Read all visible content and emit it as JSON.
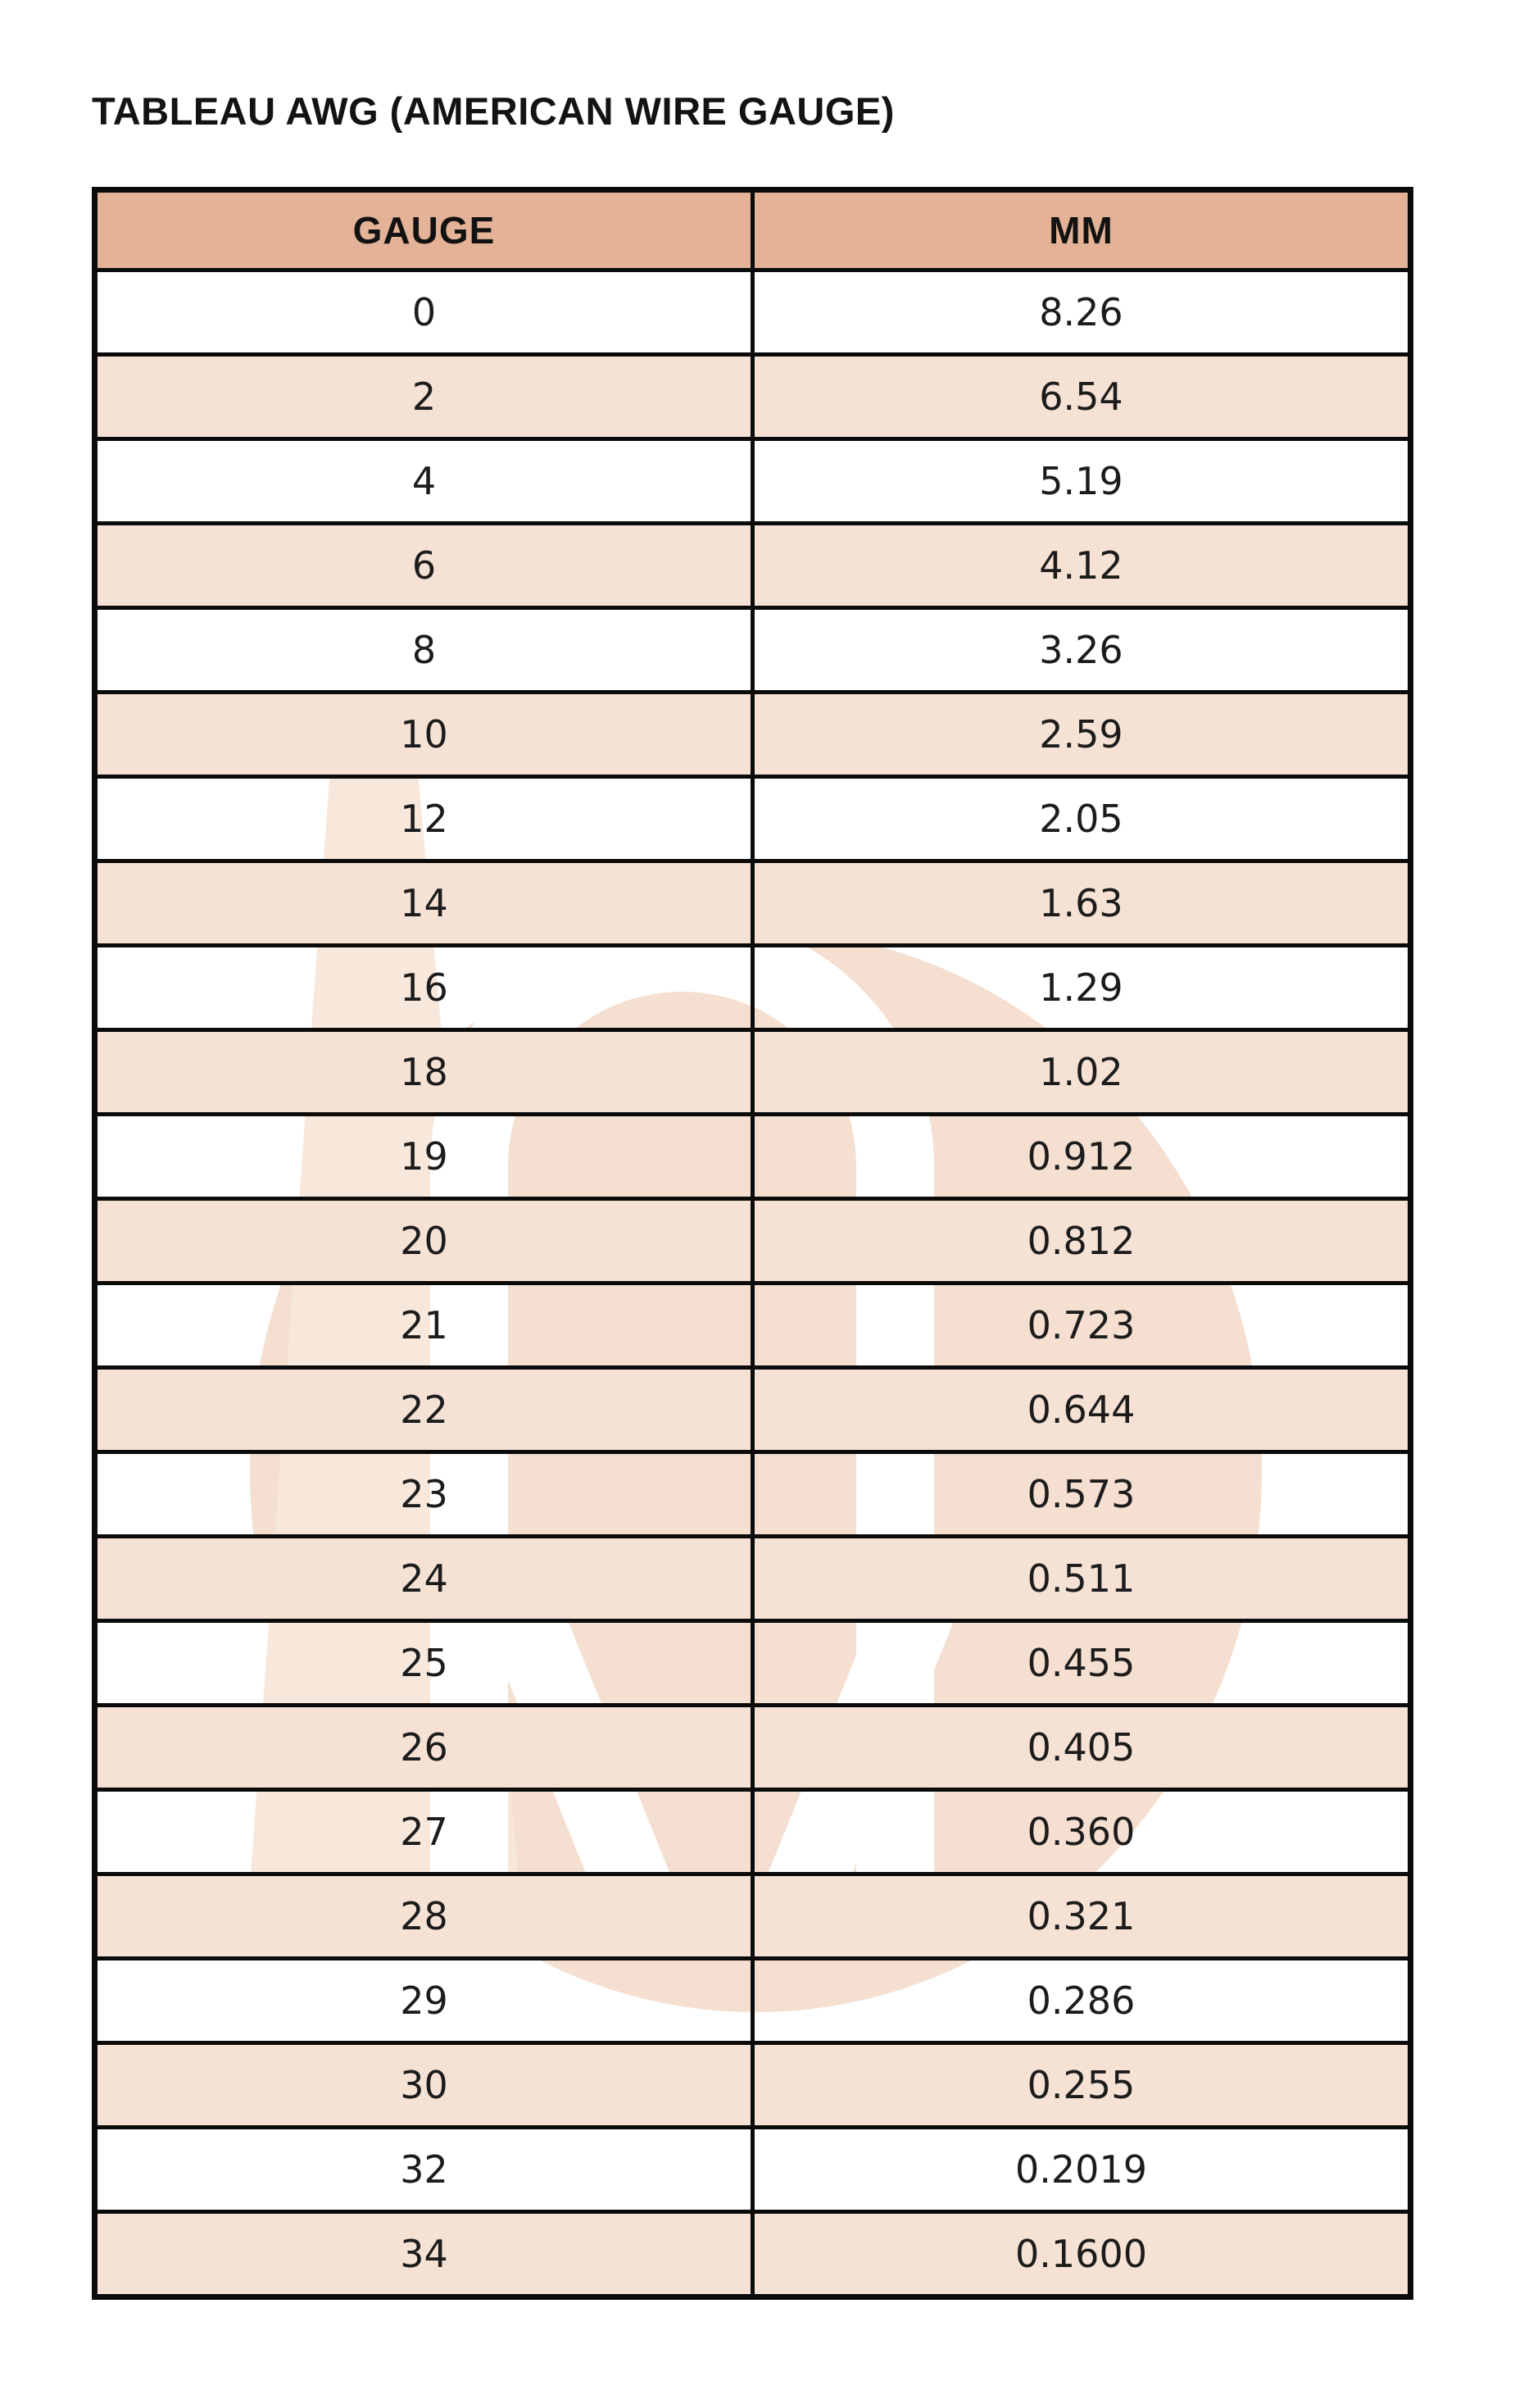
{
  "page": {
    "title": "TABLEAU AWG (AMERICAN WIRE GAUGE)"
  },
  "table": {
    "headers": {
      "gauge": "GAUGE",
      "mm": "MM"
    },
    "rows": [
      {
        "gauge": "0",
        "mm": "8.26"
      },
      {
        "gauge": "2",
        "mm": "6.54"
      },
      {
        "gauge": "4",
        "mm": "5.19"
      },
      {
        "gauge": "6",
        "mm": "4.12"
      },
      {
        "gauge": "8",
        "mm": "3.26"
      },
      {
        "gauge": "10",
        "mm": "2.59"
      },
      {
        "gauge": "12",
        "mm": "2.05"
      },
      {
        "gauge": "14",
        "mm": "1.63"
      },
      {
        "gauge": "16",
        "mm": "1.29"
      },
      {
        "gauge": "18",
        "mm": "1.02"
      },
      {
        "gauge": "19",
        "mm": "0.912"
      },
      {
        "gauge": "20",
        "mm": "0.812"
      },
      {
        "gauge": "21",
        "mm": "0.723"
      },
      {
        "gauge": "22",
        "mm": "0.644"
      },
      {
        "gauge": "23",
        "mm": "0.573"
      },
      {
        "gauge": "24",
        "mm": "0.511"
      },
      {
        "gauge": "25",
        "mm": "0.455"
      },
      {
        "gauge": "26",
        "mm": "0.405"
      },
      {
        "gauge": "27",
        "mm": "0.360"
      },
      {
        "gauge": "28",
        "mm": "0.321"
      },
      {
        "gauge": "29",
        "mm": "0.286"
      },
      {
        "gauge": "30",
        "mm": "0.255"
      },
      {
        "gauge": "32",
        "mm": "0.2019"
      },
      {
        "gauge": "34",
        "mm": "0.1600"
      }
    ],
    "zebra_note": "first data row white, then alternating peach/white"
  },
  "colors": {
    "header_bg": "#e4b296",
    "row_alt_bg": "#f6e2d4",
    "border": "#0b0b0b",
    "watermark_peach": "#f5dfd0",
    "title_text": "#131313"
  }
}
